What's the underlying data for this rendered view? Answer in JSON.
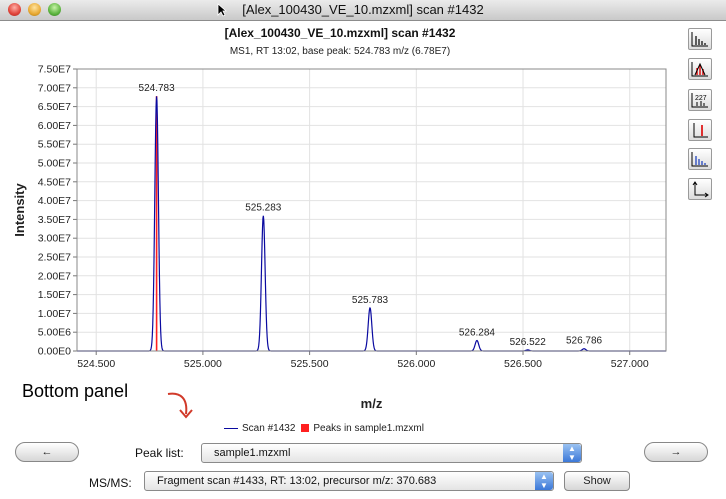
{
  "window": {
    "title": "[Alex_100430_VE_10.mzxml] scan #1432"
  },
  "chart": {
    "title": "[Alex_100430_VE_10.mzxml] scan #1432",
    "subtitle": "MS1, RT 13:02, base peak: 524.783 m/z (6.78E7)",
    "ylabel": "Intensity",
    "xlabel": "m/z"
  },
  "chart_data": {
    "type": "line",
    "x_ticks": [
      "524.500",
      "525.000",
      "525.500",
      "526.000",
      "526.500",
      "527.000"
    ],
    "y_ticks": [
      "0.00E0",
      "5.00E6",
      "1.00E7",
      "1.50E7",
      "2.00E7",
      "2.50E7",
      "3.00E7",
      "3.50E7",
      "4.00E7",
      "4.50E7",
      "5.00E7",
      "5.50E7",
      "6.00E7",
      "6.50E7",
      "7.00E7",
      "7.50E7"
    ],
    "xlim": [
      524.41,
      527.17
    ],
    "ylim": [
      0,
      75000000
    ],
    "series": [
      {
        "name": "Scan #1432",
        "color": "#0a0aa0",
        "peaks": [
          {
            "mz": 524.783,
            "intensity": 67800000,
            "label": "524.783"
          },
          {
            "mz": 525.283,
            "intensity": 36000000,
            "label": "525.283"
          },
          {
            "mz": 525.783,
            "intensity": 11500000,
            "label": "525.783"
          },
          {
            "mz": 526.284,
            "intensity": 2800000,
            "label": "526.284"
          },
          {
            "mz": 526.522,
            "intensity": 300000,
            "label": "526.522"
          },
          {
            "mz": 526.786,
            "intensity": 600000,
            "label": "526.786"
          }
        ]
      },
      {
        "name": "Peaks in sample1.mzxml",
        "color": "#ff2020",
        "peaks": [
          {
            "mz": 524.783,
            "intensity": 67800000
          }
        ]
      }
    ],
    "grid": true,
    "legend": "bottom-center"
  },
  "annotation": {
    "bottom_panel": "Bottom panel"
  },
  "legend": {
    "scan": "Scan #1432",
    "peaks": "Peaks in sample1.mzxml"
  },
  "controls": {
    "prev_button": "←",
    "next_button": "→",
    "peak_list_label": "Peak list:",
    "peak_list_value": "sample1.mzxml",
    "msms_label": "MS/MS:",
    "msms_value": "Fragment scan #1433, RT: 13:02, precursor m/z: 370.683",
    "show_button": "Show"
  },
  "toolbar": [
    "centroid-icon",
    "peak-detection-icon",
    "annotation-icon",
    "set-peak-icon",
    "isotope-icon",
    "axes-icon"
  ]
}
